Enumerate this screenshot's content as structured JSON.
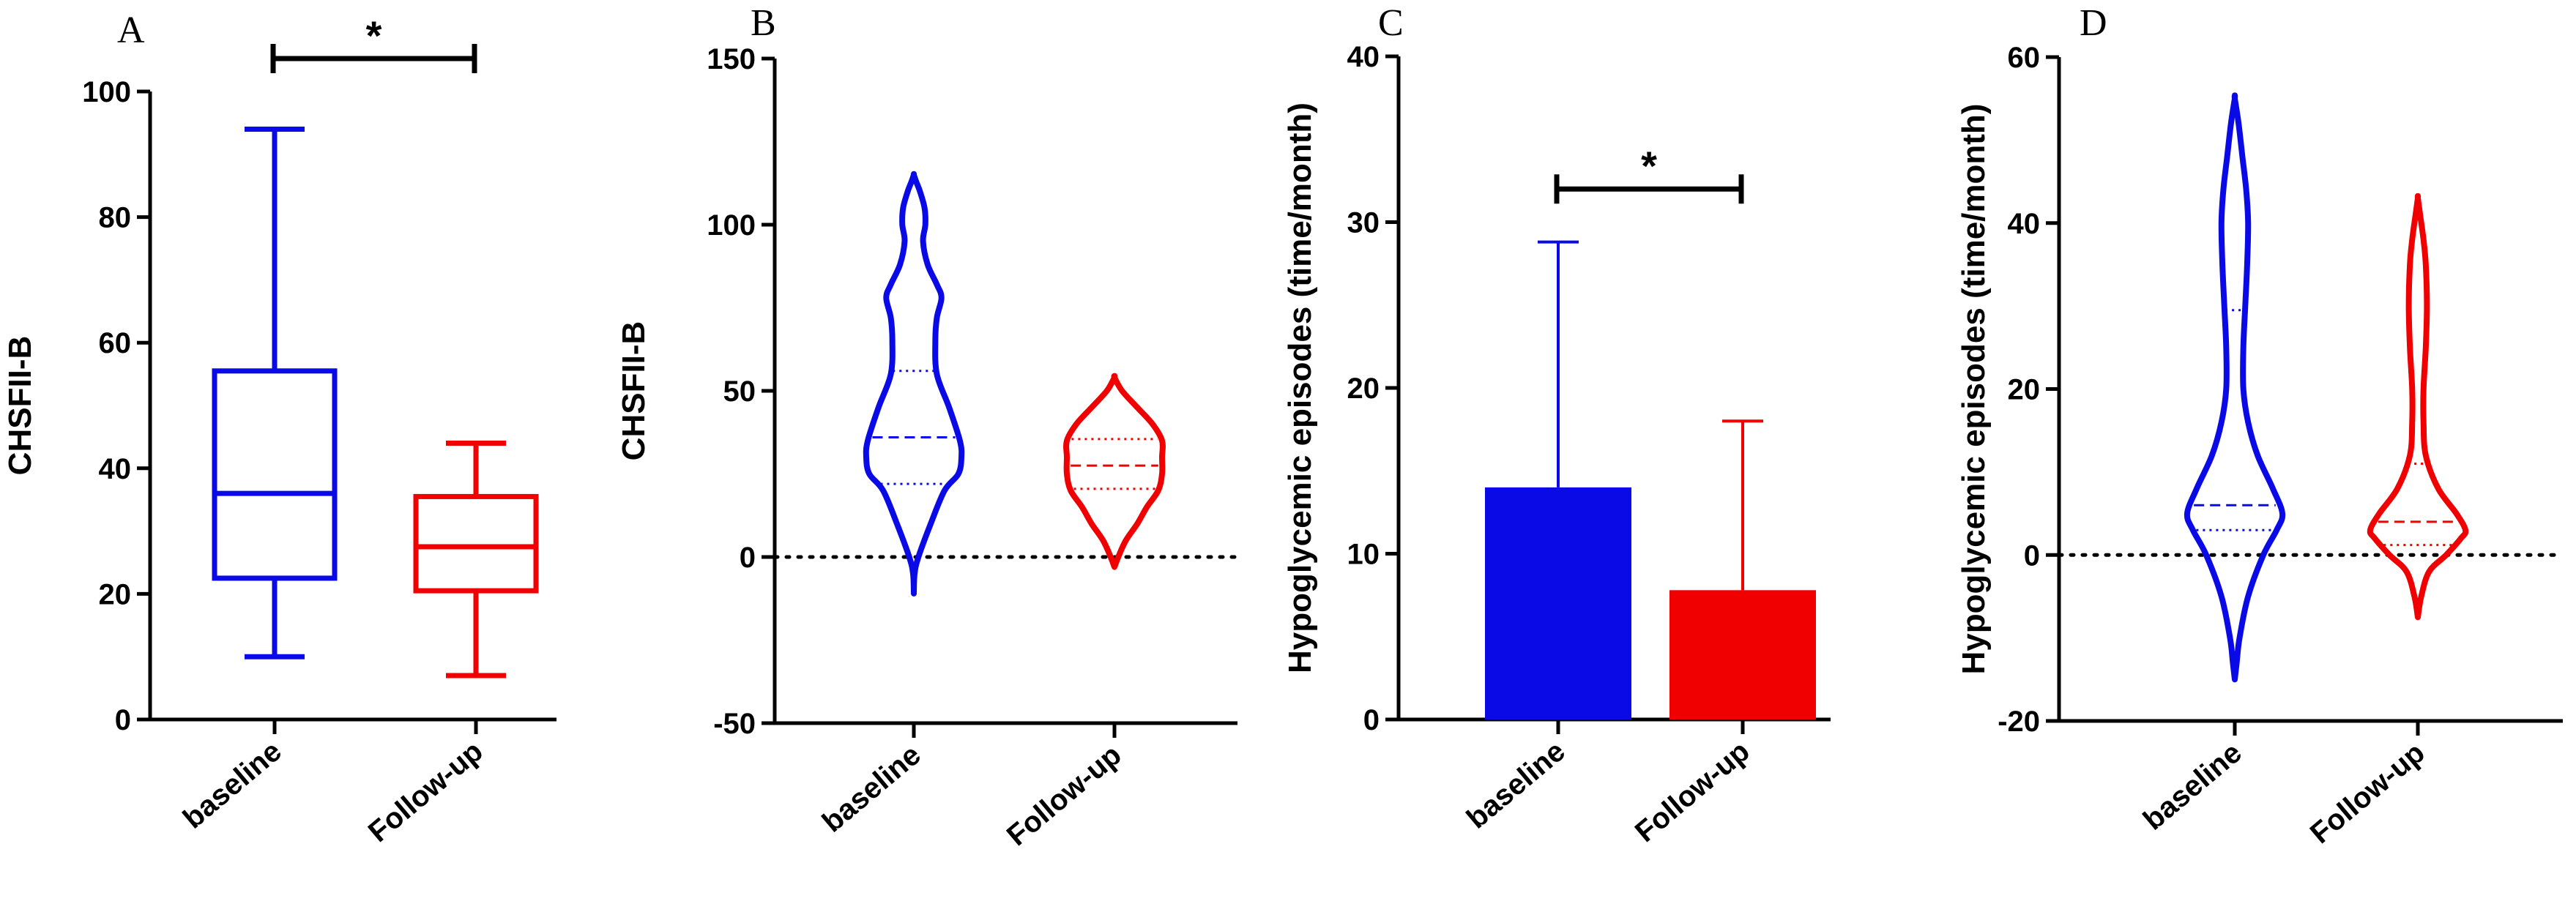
{
  "colors": {
    "baseline": "#0a0ae6",
    "followup": "#f00000",
    "axis": "#000000"
  },
  "chart_data": [
    {
      "panel": "A",
      "type": "box",
      "ylabel": "CHSFII-B",
      "categories": [
        "baseline",
        "Follow-up"
      ],
      "ylim": [
        0,
        100
      ],
      "yticks": [
        "0",
        "20",
        "40",
        "60",
        "80",
        "100"
      ],
      "series": [
        {
          "min": 10,
          "q1": 22.5,
          "median": 36,
          "q3": 55.5,
          "max": 94
        },
        {
          "min": 7,
          "q1": 20.5,
          "median": 27.5,
          "q3": 35.5,
          "max": 44
        }
      ],
      "significance": "*"
    },
    {
      "panel": "B",
      "type": "violin",
      "ylabel": "CHSFII-B",
      "categories": [
        "baseline",
        "Follow-up"
      ],
      "ylim": [
        -50,
        150
      ],
      "yticks": [
        "-50",
        "0",
        "50",
        "100",
        "150"
      ],
      "reference_line": 0,
      "series": [
        {
          "q1": 22,
          "median": 36,
          "q3": 56,
          "profile": [
            [
              -11,
              0
            ],
            [
              -5,
              1
            ],
            [
              0,
              6
            ],
            [
              10,
              22
            ],
            [
              20,
              40
            ],
            [
              25,
              58
            ],
            [
              30,
              62
            ],
            [
              35,
              60
            ],
            [
              45,
              46
            ],
            [
              55,
              30
            ],
            [
              65,
              28
            ],
            [
              72,
              30
            ],
            [
              78,
              36
            ],
            [
              82,
              30
            ],
            [
              88,
              18
            ],
            [
              95,
              12
            ],
            [
              100,
              15
            ],
            [
              105,
              14
            ],
            [
              110,
              8
            ],
            [
              113,
              3
            ],
            [
              115,
              0
            ]
          ]
        },
        {
          "q1": 20.5,
          "median": 27.5,
          "q3": 35.5,
          "profile": [
            [
              -3,
              0
            ],
            [
              0,
              4
            ],
            [
              5,
              12
            ],
            [
              10,
              24
            ],
            [
              15,
              34
            ],
            [
              20,
              46
            ],
            [
              25,
              50
            ],
            [
              30,
              50
            ],
            [
              35,
              50
            ],
            [
              40,
              40
            ],
            [
              45,
              24
            ],
            [
              50,
              8
            ],
            [
              54,
              0
            ]
          ]
        }
      ]
    },
    {
      "panel": "C",
      "type": "bar",
      "ylabel": "Hypoglycemic episodes (time/month)",
      "categories": [
        "baseline",
        "Follow-up"
      ],
      "ylim": [
        0,
        40
      ],
      "yticks": [
        "0",
        "10",
        "20",
        "30",
        "40"
      ],
      "values": [
        14,
        7.8
      ],
      "error_upper": [
        28.8,
        18
      ],
      "significance": "*"
    },
    {
      "panel": "D",
      "type": "violin",
      "ylabel": "Hypoglycemic episodes (time/month)",
      "categories": [
        "baseline",
        "Follow-up"
      ],
      "ylim": [
        -20,
        60
      ],
      "yticks": [
        "-20",
        "0",
        "20",
        "40",
        "60"
      ],
      "reference_line": 0,
      "series": [
        {
          "q1": 3,
          "median": 6,
          "q3": 29.5,
          "profile": [
            [
              -15,
              0
            ],
            [
              -13,
              2
            ],
            [
              -10,
              5
            ],
            [
              -5,
              14
            ],
            [
              0,
              30
            ],
            [
              3,
              44
            ],
            [
              5,
              50
            ],
            [
              8,
              40
            ],
            [
              12,
              24
            ],
            [
              16,
              14
            ],
            [
              20,
              9
            ],
            [
              25,
              9
            ],
            [
              30,
              11
            ],
            [
              35,
              13
            ],
            [
              40,
              14
            ],
            [
              44,
              12
            ],
            [
              48,
              8
            ],
            [
              52,
              4
            ],
            [
              55,
              0
            ]
          ]
        },
        {
          "q1": 1.2,
          "median": 4,
          "q3": 11,
          "profile": [
            [
              -7.5,
              0
            ],
            [
              -5,
              3
            ],
            [
              -2,
              10
            ],
            [
              0,
              25
            ],
            [
              2,
              38
            ],
            [
              3,
              42
            ],
            [
              5,
              34
            ],
            [
              8,
              18
            ],
            [
              12,
              7
            ],
            [
              16,
              5
            ],
            [
              20,
              5
            ],
            [
              25,
              7
            ],
            [
              30,
              8
            ],
            [
              35,
              7
            ],
            [
              38,
              5
            ],
            [
              41,
              2
            ],
            [
              43,
              0
            ]
          ]
        }
      ]
    }
  ]
}
